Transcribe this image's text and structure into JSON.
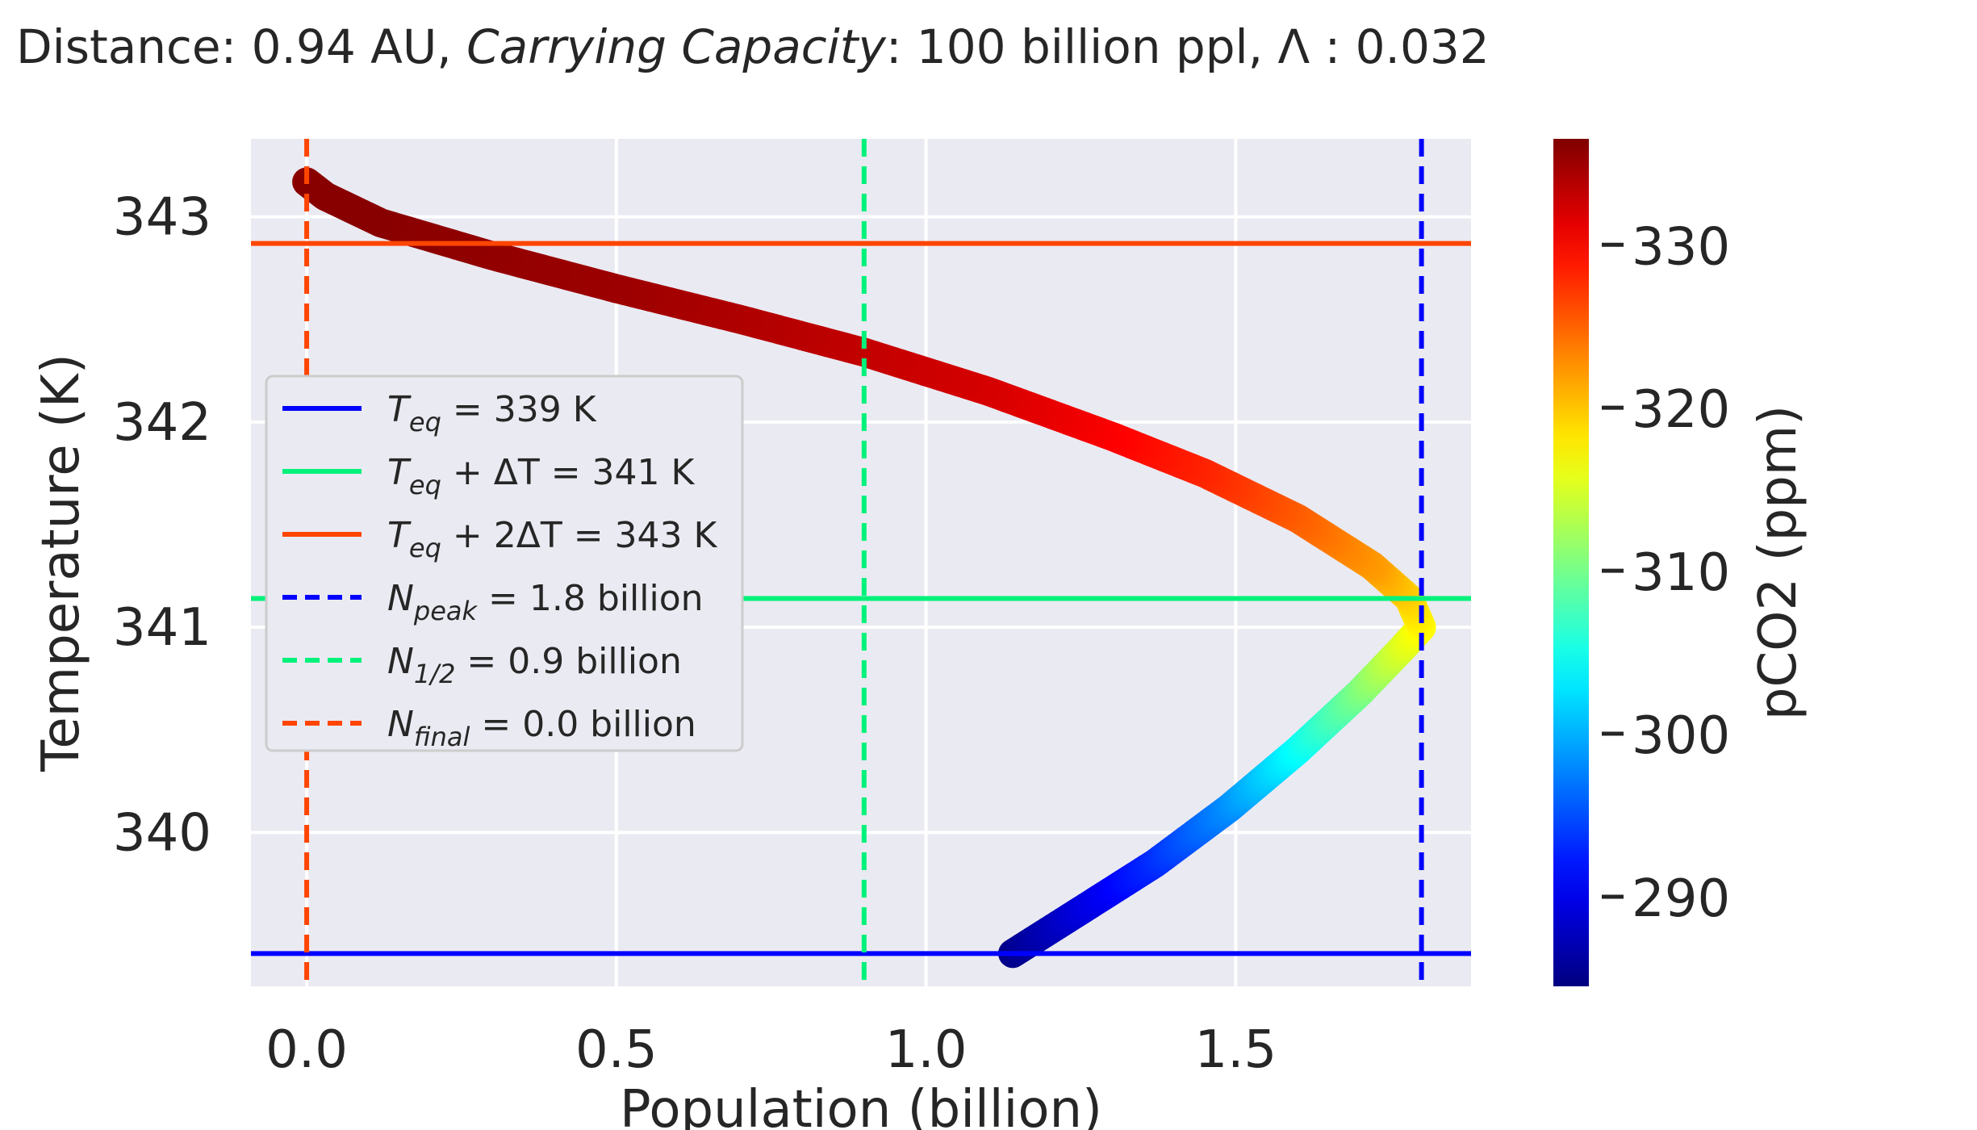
{
  "title": {
    "parts": [
      {
        "text": "Distance: 0.94 AU,  ",
        "italic": false
      },
      {
        "text": "Carrying Capacity",
        "italic": true
      },
      {
        "text": ": 100 billion ppl,    Λ :  0.032",
        "italic": false
      }
    ]
  },
  "chart_data": {
    "type": "line",
    "xlabel": "Population (billion)",
    "ylabel": "Temperature (K)",
    "xlim": [
      -0.09,
      1.88
    ],
    "ylim": [
      339.25,
      343.38
    ],
    "xticks": [
      0.0,
      0.5,
      1.0,
      1.5
    ],
    "xtick_labels": [
      "0.0",
      "0.5",
      "1.0",
      "1.5"
    ],
    "yticks": [
      340,
      341,
      342,
      343
    ],
    "ytick_labels": [
      "340",
      "341",
      "342",
      "343"
    ],
    "grid": true,
    "curve": {
      "description_points": [
        {
          "population": 1.14,
          "temperature": 339.41,
          "pco2": 285
        },
        {
          "population": 1.25,
          "temperature": 339.62,
          "pco2": 289
        },
        {
          "population": 1.37,
          "temperature": 339.85,
          "pco2": 293
        },
        {
          "population": 1.49,
          "temperature": 340.12,
          "pco2": 298
        },
        {
          "population": 1.6,
          "temperature": 340.4,
          "pco2": 304
        },
        {
          "population": 1.7,
          "temperature": 340.68,
          "pco2": 310
        },
        {
          "population": 1.77,
          "temperature": 340.9,
          "pco2": 315
        },
        {
          "population": 1.8,
          "temperature": 341.0,
          "pco2": 317
        },
        {
          "population": 1.78,
          "temperature": 341.14,
          "pco2": 319
        },
        {
          "population": 1.72,
          "temperature": 341.3,
          "pco2": 322
        },
        {
          "population": 1.6,
          "temperature": 341.53,
          "pco2": 325
        },
        {
          "population": 1.45,
          "temperature": 341.75,
          "pco2": 328
        },
        {
          "population": 1.3,
          "temperature": 341.93,
          "pco2": 330
        },
        {
          "population": 1.1,
          "temperature": 342.15,
          "pco2": 332
        },
        {
          "population": 0.9,
          "temperature": 342.34,
          "pco2": 333
        },
        {
          "population": 0.7,
          "temperature": 342.5,
          "pco2": 334
        },
        {
          "population": 0.5,
          "temperature": 342.65,
          "pco2": 335
        },
        {
          "population": 0.3,
          "temperature": 342.81,
          "pco2": 335.5
        },
        {
          "population": 0.12,
          "temperature": 342.97,
          "pco2": 336
        },
        {
          "population": 0.03,
          "temperature": 343.1,
          "pco2": 336
        },
        {
          "population": 0.0,
          "temperature": 343.17,
          "pco2": 336
        }
      ]
    },
    "hlines": [
      {
        "y": 339.41,
        "color": "#0000ff",
        "style": "solid"
      },
      {
        "y": 341.14,
        "color": "#00f27a",
        "style": "solid"
      },
      {
        "y": 342.87,
        "color": "#ff4500",
        "style": "solid"
      }
    ],
    "vlines": [
      {
        "x": 1.8,
        "color": "#0000ff",
        "style": "dashed"
      },
      {
        "x": 0.9,
        "color": "#00f27a",
        "style": "dashed"
      },
      {
        "x": 0.0,
        "color": "#ff4500",
        "style": "dashed"
      }
    ],
    "legend": {
      "placement": "center-left",
      "entries": [
        {
          "var": "T",
          "sub": "eq",
          "rest": " = 339 K",
          "color": "#0000ff",
          "style": "solid"
        },
        {
          "var": "T",
          "sub": "eq",
          "rest": " + ΔT = 341 K",
          "color": "#00f27a",
          "style": "solid"
        },
        {
          "var": "T",
          "sub": "eq",
          "rest": " + 2ΔT = 343 K",
          "color": "#ff4500",
          "style": "solid"
        },
        {
          "var": "N",
          "sub": "peak",
          "rest": " = 1.8 billion",
          "color": "#0000ff",
          "style": "dashed"
        },
        {
          "var": "N",
          "sub": "1/2",
          "rest": " = 0.9 billion",
          "color": "#00f27a",
          "style": "dashed"
        },
        {
          "var": "N",
          "sub": "final",
          "rest": " = 0.0 billion",
          "color": "#ff4500",
          "style": "dashed"
        }
      ]
    },
    "colorbar": {
      "label": "pCO2 (ppm)",
      "colormap": "jet",
      "range": [
        284.5,
        336.5
      ],
      "ticks": [
        290,
        300,
        310,
        320,
        330
      ],
      "tick_labels": [
        "290",
        "300",
        "310",
        "320",
        "330"
      ]
    }
  }
}
